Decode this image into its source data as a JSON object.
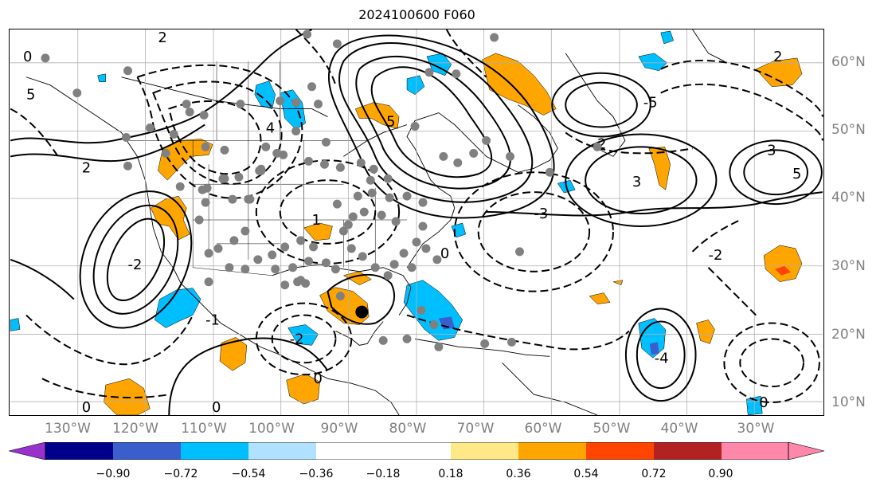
{
  "title": "2024100600 F060",
  "lon_labels": [
    "130°W",
    "120°W",
    "110°W",
    "100°W",
    "90°W",
    "80°W",
    "70°W",
    "60°W",
    "50°W",
    "40°W",
    "30°W"
  ],
  "lat_labels": [
    "60°N",
    "50°N",
    "40°N",
    "30°N",
    "20°N",
    "10°N"
  ],
  "colorbar": {
    "tick_labels": [
      "−0.90",
      "−0.72",
      "−0.54",
      "−0.36",
      "−0.18",
      "0.18",
      "0.36",
      "0.54",
      "0.72",
      "0.90"
    ],
    "colors": [
      "#9932cc",
      "#00008b",
      "#3a5fcd",
      "#00bfff",
      "#b0e2ff",
      "#ffffff",
      "#ffe888",
      "#ffa500",
      "#ff4500",
      "#b22222",
      "#ff88aa"
    ]
  },
  "map": {
    "projection": "PlateCarree",
    "lon_range": [
      -140,
      -20
    ],
    "lat_range": [
      8,
      65
    ],
    "grid_lon": [
      -130,
      -120,
      -110,
      -100,
      -90,
      -80,
      -70,
      -60,
      -50,
      -40,
      -30
    ],
    "grid_lat": [
      10,
      20,
      30,
      40,
      50,
      60
    ],
    "fill_colors": {
      "orange": "#ffa500",
      "cyan": "#00bfff",
      "red": "#ff4500",
      "blue": "#3a5fcd"
    },
    "contour_labels": [
      "5",
      "2",
      "0",
      "2",
      "-2",
      "4",
      "3",
      "1",
      "-2",
      "5",
      "0",
      "-5",
      "-4",
      "2",
      "3",
      "-3",
      "-2",
      "0",
      "-1",
      "0",
      "2",
      "0",
      "0",
      "5"
    ],
    "storm_marker": {
      "lon": -88.4,
      "lat": 23.3
    }
  }
}
